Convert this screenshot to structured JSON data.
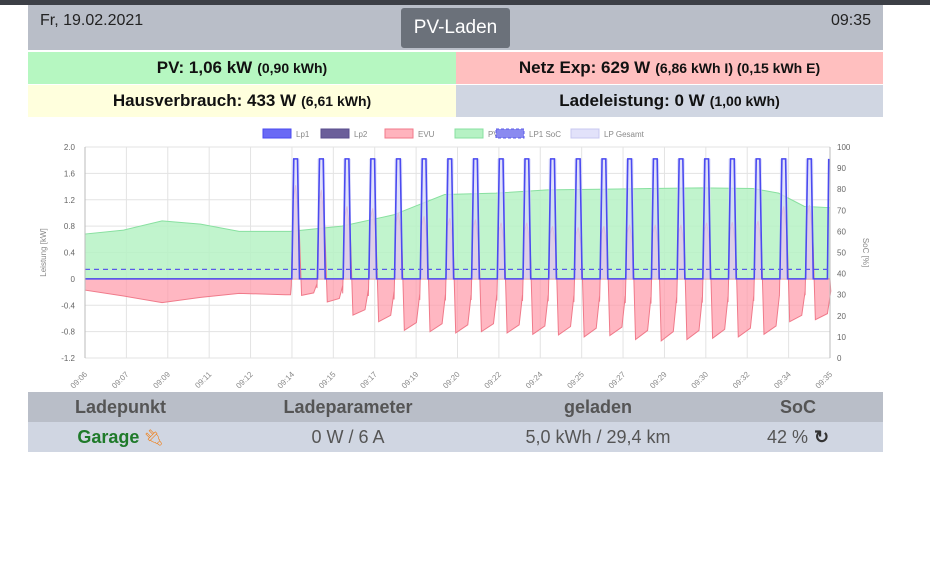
{
  "header": {
    "date": "Fr, 19.02.2021",
    "mode": "PV-Laden",
    "time": "09:35"
  },
  "summary": {
    "pv": {
      "main": "PV: 1,06 kW",
      "sub": "(0,90 kWh)"
    },
    "netz": {
      "main": "Netz Exp: 629 W",
      "sub": "(6,86 kWh I) (0,15 kWh E)"
    },
    "haus": {
      "main": "Hausverbrauch: 433 W",
      "sub": "(6,61 kWh)"
    },
    "lade": {
      "main": "Ladeleistung: 0 W",
      "sub": "(1,00 kWh)"
    }
  },
  "chart_data": {
    "type": "line",
    "legend": [
      "Lp1",
      "Lp2",
      "EVU",
      "PV",
      "LP1 SoC",
      "LP Gesamt"
    ],
    "legend_position": "top",
    "colors": {
      "Lp1": "#4a4af0",
      "Lp2": "#5a4d8e",
      "EVU": "#ff8fa0",
      "PV": "#9af0b0",
      "LP1 SoC": "#5a5ae8",
      "LP Gesamt": "#d8d8f8"
    },
    "ylabel": "Leistung [kW]",
    "y2label": "SoC [%]",
    "ylim": [
      -1.2,
      2.0
    ],
    "y2lim": [
      0,
      100
    ],
    "yticks": [
      "2.0",
      "1.6",
      "1.2",
      "0.8",
      "0.4",
      "0",
      "-0.4",
      "-0.8",
      "-1.2"
    ],
    "y2ticks": [
      "100",
      "90",
      "80",
      "70",
      "60",
      "50",
      "40",
      "30",
      "20",
      "10",
      "0"
    ],
    "xticks": [
      "09:06",
      "09:07",
      "09:09",
      "09:11",
      "09:12",
      "09:14",
      "09:15",
      "09:17",
      "09:19",
      "09:20",
      "09:22",
      "09:24",
      "09:25",
      "09:27",
      "09:29",
      "09:30",
      "09:32",
      "09:34",
      "09:35"
    ],
    "x_range": [
      "09:06",
      "09:35"
    ],
    "pv_kw": [
      [
        0,
        0.68
      ],
      [
        1.5,
        0.74
      ],
      [
        3,
        0.88
      ],
      [
        4.5,
        0.83
      ],
      [
        6,
        0.72
      ],
      [
        8,
        0.72
      ],
      [
        10,
        0.8
      ],
      [
        12,
        0.97
      ],
      [
        14,
        1.28
      ],
      [
        16,
        1.3
      ],
      [
        18,
        1.35
      ],
      [
        20,
        1.36
      ],
      [
        22,
        1.37
      ],
      [
        24,
        1.38
      ],
      [
        26,
        1.37
      ],
      [
        27,
        1.3
      ],
      [
        28,
        1.1
      ],
      [
        29,
        1.08
      ]
    ],
    "evu_base_kw": [
      [
        0,
        -0.17
      ],
      [
        1.5,
        -0.26
      ],
      [
        3,
        -0.36
      ],
      [
        4.5,
        -0.28
      ],
      [
        6,
        -0.22
      ],
      [
        7.8,
        -0.24
      ],
      [
        8,
        -0.24
      ]
    ],
    "pulses": [
      {
        "start": 8.05,
        "end": 8.35,
        "evu_peak": 1.42,
        "evu_low": -0.25
      },
      {
        "start": 9.05,
        "end": 9.35,
        "evu_peak": 1.35,
        "evu_low": -0.35
      },
      {
        "start": 10.05,
        "end": 10.35,
        "evu_peak": 1.1,
        "evu_low": -0.55
      },
      {
        "start": 11.05,
        "end": 11.35,
        "evu_peak": 1.07,
        "evu_low": -0.65
      },
      {
        "start": 12.05,
        "end": 12.35,
        "evu_peak": 1.0,
        "evu_low": -0.78
      },
      {
        "start": 13.05,
        "end": 13.35,
        "evu_peak": 0.95,
        "evu_low": -0.8
      },
      {
        "start": 14.05,
        "end": 14.35,
        "evu_peak": 0.92,
        "evu_low": -0.82
      },
      {
        "start": 15.05,
        "end": 15.35,
        "evu_peak": 0.9,
        "evu_low": -0.8
      },
      {
        "start": 16.05,
        "end": 16.35,
        "evu_peak": 0.85,
        "evu_low": -0.82
      },
      {
        "start": 17.05,
        "end": 17.35,
        "evu_peak": 0.85,
        "evu_low": -0.84
      },
      {
        "start": 18.05,
        "end": 18.35,
        "evu_peak": 0.8,
        "evu_low": -0.85
      },
      {
        "start": 19.05,
        "end": 19.35,
        "evu_peak": 0.78,
        "evu_low": -0.88
      },
      {
        "start": 20.05,
        "end": 20.35,
        "evu_peak": 0.8,
        "evu_low": -0.86
      },
      {
        "start": 21.05,
        "end": 21.35,
        "evu_peak": 0.82,
        "evu_low": -0.92
      },
      {
        "start": 22.05,
        "end": 22.35,
        "evu_peak": 0.82,
        "evu_low": -0.94
      },
      {
        "start": 23.05,
        "end": 23.35,
        "evu_peak": 0.82,
        "evu_low": -0.92
      },
      {
        "start": 24.05,
        "end": 24.35,
        "evu_peak": 0.85,
        "evu_low": -0.9
      },
      {
        "start": 25.05,
        "end": 25.35,
        "evu_peak": 0.86,
        "evu_low": -0.88
      },
      {
        "start": 26.05,
        "end": 26.35,
        "evu_peak": 0.88,
        "evu_low": -0.84
      },
      {
        "start": 27.05,
        "end": 27.35,
        "evu_peak": 1.1,
        "evu_low": -0.65
      },
      {
        "start": 28.05,
        "end": 28.35,
        "evu_peak": 1.12,
        "evu_low": -0.62
      }
    ],
    "lp_on_kw": 1.82,
    "lp_pulse_end": 29,
    "soc_percent": 42
  },
  "ladepunkte": {
    "headers": [
      "Ladepunkt",
      "Ladeparameter",
      "geladen",
      "SoC"
    ],
    "rows": [
      {
        "name": "Garage",
        "params": "0 W / 6 A",
        "geladen": "5,0 kWh / 29,4 km",
        "soc": "42 %"
      }
    ]
  }
}
